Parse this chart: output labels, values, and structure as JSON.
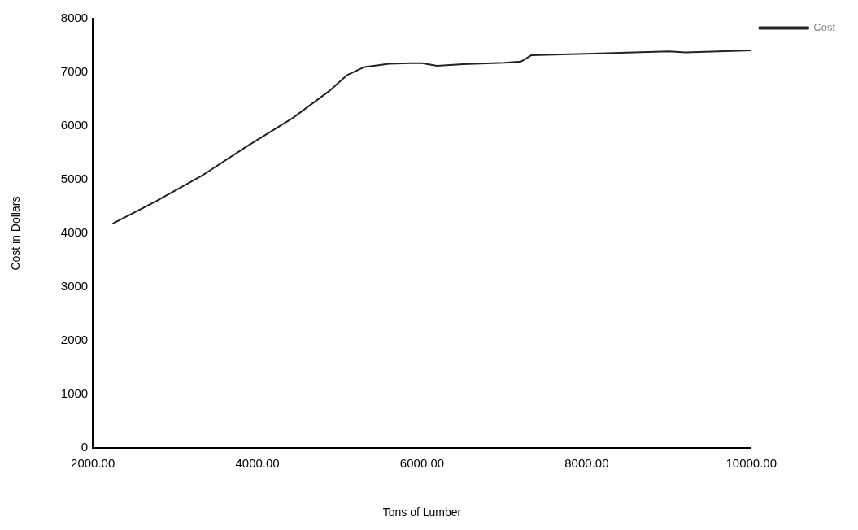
{
  "chart_data": {
    "type": "line",
    "xlabel": "Tons of Lumber",
    "ylabel": "Cost in Dollars",
    "xlim": [
      2000,
      10000
    ],
    "xticks": [
      {
        "value": 2000,
        "label": "2000.00"
      },
      {
        "value": 4000,
        "label": "4000.00"
      },
      {
        "value": 6000,
        "label": "6000.00"
      },
      {
        "value": 8000,
        "label": "8000.00"
      },
      {
        "value": 10000,
        "label": "10000.00"
      }
    ],
    "ylim": [
      0,
      8000
    ],
    "yticks": [
      0,
      1000,
      2000,
      3000,
      4000,
      5000,
      6000,
      7000,
      8000
    ],
    "grid": false,
    "legend": "top right",
    "marker": "none",
    "line_style": "solid",
    "series": [
      {
        "name": "Cost",
        "color": "#222222",
        "x": [
          2240,
          2770,
          3320,
          3870,
          4430,
          4870,
          5090,
          5300,
          5600,
          5860,
          6000,
          6180,
          6500,
          7000,
          7200,
          7330,
          8070,
          9000,
          9200,
          10000
        ],
        "values": [
          4180,
          4600,
          5070,
          5620,
          6150,
          6650,
          6950,
          7100,
          7160,
          7170,
          7170,
          7120,
          7150,
          7180,
          7200,
          7320,
          7350,
          7390,
          7370,
          7410
        ]
      }
    ]
  }
}
